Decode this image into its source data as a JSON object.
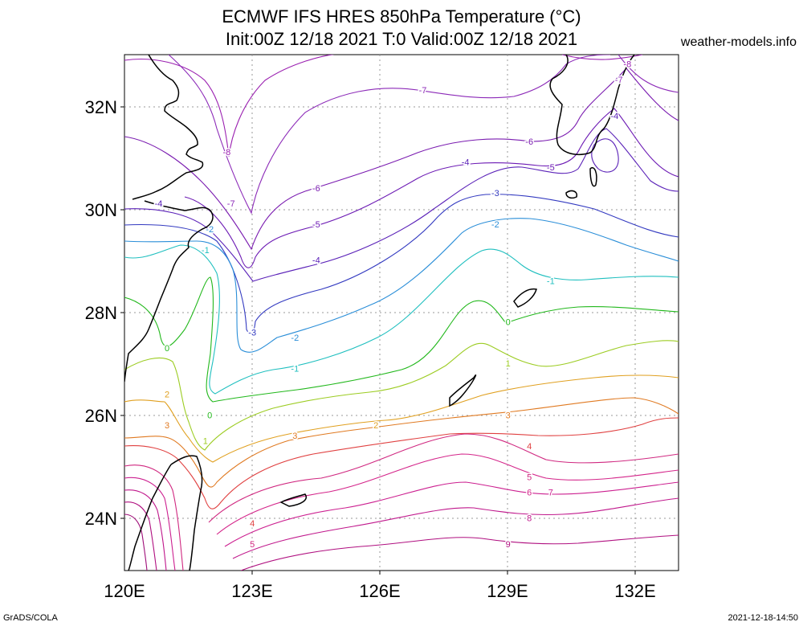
{
  "title_line1": "ECMWF IFS HRES 850hPa Temperature (°C)",
  "title_line2": "Init:00Z 12/18 2021 T:0 Valid:00Z 12/18 2021",
  "credit": "weather-models.info",
  "footer_left": "GrADS/COLA",
  "footer_right": "2021-12-18-14:50",
  "map": {
    "lon_ticks": [
      "120E",
      "123E",
      "126E",
      "129E",
      "132E"
    ],
    "lat_ticks": [
      "32N",
      "30N",
      "28N",
      "26N",
      "24N"
    ],
    "lon_range": [
      120,
      133
    ],
    "lat_range": [
      23,
      33
    ]
  },
  "contour_colors": {
    "-8": "#9a1fb0",
    "-7": "#8c2ab8",
    "-6": "#7a1bb0",
    "-5": "#6c1ab4",
    "-4": "#5a21b8",
    "-3": "#3239c0",
    "-2": "#2a8ed8",
    "-1": "#1fbfbf",
    "0": "#22b81c",
    "1": "#9ccc22",
    "2": "#e0a020",
    "3": "#e07a22",
    "4": "#e04040",
    "5": "#d02880",
    "6": "#d4258a",
    "7": "#cc2090",
    "8": "#c0188c",
    "9": "#b01080"
  },
  "contour_labels": [
    {
      "text": "-8",
      "lon": 122.4,
      "lat": 31.1
    },
    {
      "text": "-7",
      "lon": 122.5,
      "lat": 30.1
    },
    {
      "text": "-7",
      "lon": 127.0,
      "lat": 32.3
    },
    {
      "text": "-7",
      "lon": 131.6,
      "lat": 32.5
    },
    {
      "text": "-8",
      "lon": 131.8,
      "lat": 32.8
    },
    {
      "text": "-6",
      "lon": 124.5,
      "lat": 30.4
    },
    {
      "text": "-6",
      "lon": 129.5,
      "lat": 31.3
    },
    {
      "text": "-5",
      "lon": 124.5,
      "lat": 29.7
    },
    {
      "text": "-5",
      "lon": 130.0,
      "lat": 30.8
    },
    {
      "text": "-4",
      "lon": 124.5,
      "lat": 29.0
    },
    {
      "text": "-4",
      "lon": 128.0,
      "lat": 30.9
    },
    {
      "text": "-4",
      "lon": 120.8,
      "lat": 30.1
    },
    {
      "text": "-4",
      "lon": 131.5,
      "lat": 31.8
    },
    {
      "text": "-3",
      "lon": 123.0,
      "lat": 27.6
    },
    {
      "text": "-3",
      "lon": 128.7,
      "lat": 30.3
    },
    {
      "text": "-2",
      "lon": 124.0,
      "lat": 27.5
    },
    {
      "text": "-2",
      "lon": 128.7,
      "lat": 29.7
    },
    {
      "text": "-2",
      "lon": 122.0,
      "lat": 29.6
    },
    {
      "text": "-1",
      "lon": 124.0,
      "lat": 26.9
    },
    {
      "text": "-1",
      "lon": 130.0,
      "lat": 28.6
    },
    {
      "text": "-1",
      "lon": 121.9,
      "lat": 29.2
    },
    {
      "text": "0",
      "lon": 121.0,
      "lat": 27.3
    },
    {
      "text": "0",
      "lon": 122.0,
      "lat": 26.0
    },
    {
      "text": "0",
      "lon": 129.0,
      "lat": 27.8
    },
    {
      "text": "1",
      "lon": 121.9,
      "lat": 25.5
    },
    {
      "text": "1",
      "lon": 129.0,
      "lat": 27.0
    },
    {
      "text": "2",
      "lon": 121.0,
      "lat": 26.4
    },
    {
      "text": "2",
      "lon": 125.9,
      "lat": 25.8
    },
    {
      "text": "3",
      "lon": 121.0,
      "lat": 25.8
    },
    {
      "text": "3",
      "lon": 124.0,
      "lat": 25.6
    },
    {
      "text": "3",
      "lon": 129.0,
      "lat": 26.0
    },
    {
      "text": "4",
      "lon": 123.0,
      "lat": 23.9
    },
    {
      "text": "4",
      "lon": 129.5,
      "lat": 25.4
    },
    {
      "text": "5",
      "lon": 123.0,
      "lat": 23.5
    },
    {
      "text": "5",
      "lon": 129.5,
      "lat": 24.8
    },
    {
      "text": "6",
      "lon": 129.5,
      "lat": 24.5
    },
    {
      "text": "7",
      "lon": 130.0,
      "lat": 24.5
    },
    {
      "text": "8",
      "lon": 129.5,
      "lat": 24.0
    },
    {
      "text": "9",
      "lon": 129.0,
      "lat": 23.5
    }
  ]
}
